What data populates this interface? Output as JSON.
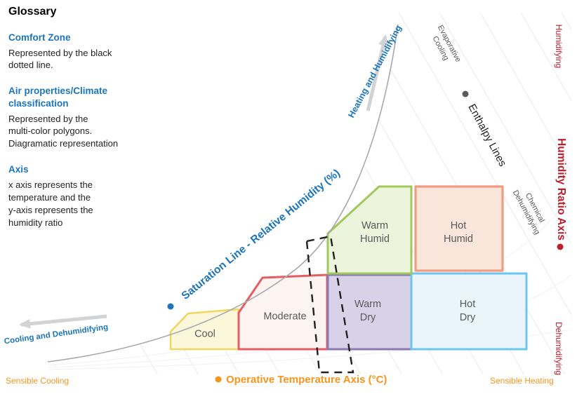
{
  "glossary": {
    "title": "Glossary",
    "entries": [
      {
        "term": "Comfort Zone",
        "desc": "Represented by the black\ndotted line."
      },
      {
        "term": "Air properties/Climate\nclassification",
        "desc": "Represented by the\nmulti-color polygons.\nDiagramatic representation"
      },
      {
        "term": "Axis",
        "desc": "x axis represents the\ntemperature and the\ny-axis represents the\nhumidity ratio"
      }
    ]
  },
  "axis_labels": {
    "saturation_line": "Saturation Line - Relative Humidity (%)",
    "humidity_ratio_axis": "Humidity Ratio Axis",
    "operative_temperature_axis": "Operative Temperature Axis (°C)"
  },
  "process_labels": {
    "heating_humidifying": "Heating and Humidifying",
    "cooling_dehumidifying": "Cooling and Dehumidifying",
    "evaporative_cooling": "Evaporative\nCooling",
    "enthalpy_lines": "Enthalpy Lines",
    "chemical_dehumidifying": "Chemical\nDehumidifying",
    "humidifying": "Humidifying",
    "dehumidifying": "Dehumidifying",
    "sensible_cooling": "Sensible Cooling",
    "sensible_heating": "Sensible Heating"
  },
  "zones": [
    {
      "label": "Cool",
      "fill": "#fcf7da",
      "stroke": "#f0d860"
    },
    {
      "label": "Moderate",
      "fill": "#fdf4f2",
      "stroke": "#e45d63"
    },
    {
      "label": "Warm\nDry",
      "fill": "#d8d2e8",
      "stroke": "#8b79b3"
    },
    {
      "label": "Hot\nDry",
      "fill": "#e9f4fb",
      "stroke": "#6ec6f0"
    },
    {
      "label": "Warm\nHumid",
      "fill": "#ecf4dc",
      "stroke": "#a0c95c"
    },
    {
      "label": "Hot\nHumid",
      "fill": "#fae5da",
      "stroke": "#f09c82"
    }
  ],
  "colors": {
    "label_blue": "#1c75bc",
    "label_red": "#be1e2d",
    "label_orange": "#f7941d",
    "text_dark": "#231f20",
    "muted_gray": "#58595b",
    "comfort_outline": "#231f20",
    "arrow_gray": "#d1d3d4",
    "grid_gray": "#ebebeb",
    "saturation_curve_gray": "#a7a9ac"
  }
}
